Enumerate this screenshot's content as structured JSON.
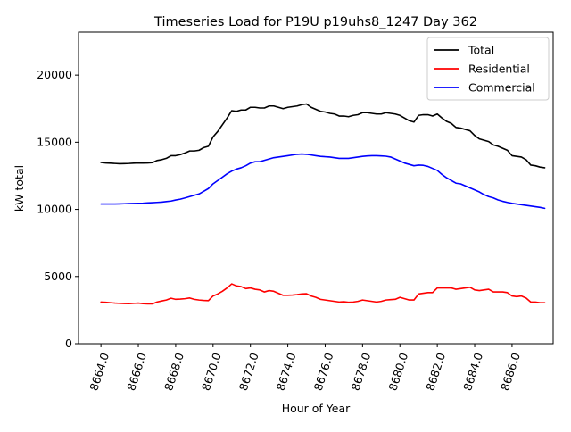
{
  "chart_data": {
    "type": "line",
    "title": "Timeseries Load for P19U p19uhs8_1247  Day 362",
    "xlabel": "Hour of Year",
    "ylabel": "kW total",
    "xlim": [
      8662.8,
      8688.2
    ],
    "ylim": [
      0,
      23200
    ],
    "xticks": [
      8664,
      8666,
      8668,
      8670,
      8672,
      8674,
      8676,
      8678,
      8680,
      8682,
      8684,
      8686
    ],
    "xtick_labels": [
      "8664.0",
      "8666.0",
      "8668.0",
      "8670.0",
      "8672.0",
      "8674.0",
      "8676.0",
      "8678.0",
      "8680.0",
      "8682.0",
      "8684.0",
      "8686.0"
    ],
    "yticks": [
      0,
      5000,
      10000,
      15000,
      20000
    ],
    "ytick_labels": [
      "0",
      "5000",
      "10000",
      "15000",
      "20000"
    ],
    "legend_position": "top-right",
    "x": [
      8664.0,
      8664.25,
      8664.5,
      8664.75,
      8665.0,
      8665.25,
      8665.5,
      8665.75,
      8666.0,
      8666.25,
      8666.5,
      8666.75,
      8667.0,
      8667.25,
      8667.5,
      8667.75,
      8668.0,
      8668.25,
      8668.5,
      8668.75,
      8669.0,
      8669.25,
      8669.5,
      8669.75,
      8670.0,
      8670.25,
      8670.5,
      8670.75,
      8671.0,
      8671.25,
      8671.5,
      8671.75,
      8672.0,
      8672.25,
      8672.5,
      8672.75,
      8673.0,
      8673.25,
      8673.5,
      8673.75,
      8674.0,
      8674.25,
      8674.5,
      8674.75,
      8675.0,
      8675.25,
      8675.5,
      8675.75,
      8676.0,
      8676.25,
      8676.5,
      8676.75,
      8677.0,
      8677.25,
      8677.5,
      8677.75,
      8678.0,
      8678.25,
      8678.5,
      8678.75,
      8679.0,
      8679.25,
      8679.5,
      8679.75,
      8680.0,
      8680.25,
      8680.5,
      8680.75,
      8681.0,
      8681.25,
      8681.5,
      8681.75,
      8682.0,
      8682.25,
      8682.5,
      8682.75,
      8683.0,
      8683.25,
      8683.5,
      8683.75,
      8684.0,
      8684.25,
      8684.5,
      8684.75,
      8685.0,
      8685.25,
      8685.5,
      8685.75,
      8686.0,
      8686.25,
      8686.5,
      8686.75,
      8687.0,
      8687.25,
      8687.5,
      8687.75
    ],
    "series": [
      {
        "name": "Total",
        "color": "#000000",
        "values": [
          13500,
          13460,
          13440,
          13420,
          13400,
          13410,
          13420,
          13440,
          13460,
          13450,
          13460,
          13480,
          13640,
          13700,
          13800,
          14000,
          14000,
          14080,
          14200,
          14350,
          14350,
          14400,
          14600,
          14700,
          15400,
          15800,
          16300,
          16800,
          17350,
          17300,
          17400,
          17400,
          17600,
          17600,
          17550,
          17550,
          17700,
          17700,
          17600,
          17500,
          17600,
          17650,
          17700,
          17800,
          17850,
          17600,
          17450,
          17300,
          17250,
          17150,
          17100,
          16950,
          16950,
          16900,
          17000,
          17050,
          17200,
          17200,
          17150,
          17100,
          17100,
          17200,
          17150,
          17100,
          17000,
          16800,
          16600,
          16500,
          17000,
          17050,
          17050,
          16950,
          17100,
          16800,
          16550,
          16400,
          16100,
          16050,
          15950,
          15850,
          15500,
          15250,
          15150,
          15050,
          14800,
          14700,
          14550,
          14400,
          14000,
          13950,
          13900,
          13700,
          13300,
          13250,
          13150,
          13100
        ]
      },
      {
        "name": "Residential",
        "color": "#ff0000",
        "values": [
          3100,
          3080,
          3050,
          3020,
          3000,
          2990,
          2980,
          3000,
          3020,
          2980,
          2960,
          2960,
          3100,
          3180,
          3250,
          3380,
          3300,
          3320,
          3350,
          3400,
          3300,
          3250,
          3220,
          3200,
          3550,
          3700,
          3900,
          4150,
          4450,
          4300,
          4250,
          4100,
          4150,
          4050,
          4000,
          3850,
          3950,
          3900,
          3750,
          3600,
          3600,
          3620,
          3650,
          3700,
          3720,
          3550,
          3450,
          3300,
          3250,
          3200,
          3150,
          3100,
          3120,
          3080,
          3100,
          3150,
          3250,
          3200,
          3150,
          3100,
          3150,
          3250,
          3280,
          3300,
          3450,
          3350,
          3250,
          3250,
          3700,
          3750,
          3800,
          3800,
          4150,
          4150,
          4150,
          4150,
          4050,
          4100,
          4150,
          4200,
          4000,
          3950,
          4000,
          4050,
          3850,
          3850,
          3850,
          3800,
          3550,
          3500,
          3550,
          3400,
          3100,
          3100,
          3050,
          3050
        ]
      },
      {
        "name": "Commercial",
        "color": "#0000ff",
        "values": [
          10400,
          10400,
          10400,
          10400,
          10410,
          10420,
          10430,
          10440,
          10450,
          10460,
          10480,
          10500,
          10520,
          10540,
          10580,
          10620,
          10700,
          10760,
          10850,
          10950,
          11050,
          11150,
          11350,
          11550,
          11900,
          12150,
          12400,
          12650,
          12850,
          13000,
          13100,
          13250,
          13450,
          13550,
          13550,
          13650,
          13750,
          13850,
          13900,
          13950,
          14000,
          14050,
          14100,
          14120,
          14100,
          14050,
          14000,
          13950,
          13920,
          13900,
          13850,
          13800,
          13800,
          13800,
          13850,
          13900,
          13950,
          13980,
          14000,
          14000,
          13980,
          13960,
          13900,
          13750,
          13600,
          13450,
          13350,
          13250,
          13300,
          13280,
          13200,
          13050,
          12900,
          12600,
          12350,
          12150,
          11950,
          11900,
          11750,
          11600,
          11450,
          11300,
          11100,
          10950,
          10850,
          10700,
          10600,
          10520,
          10450,
          10400,
          10350,
          10300,
          10250,
          10200,
          10150,
          10080
        ]
      }
    ]
  }
}
